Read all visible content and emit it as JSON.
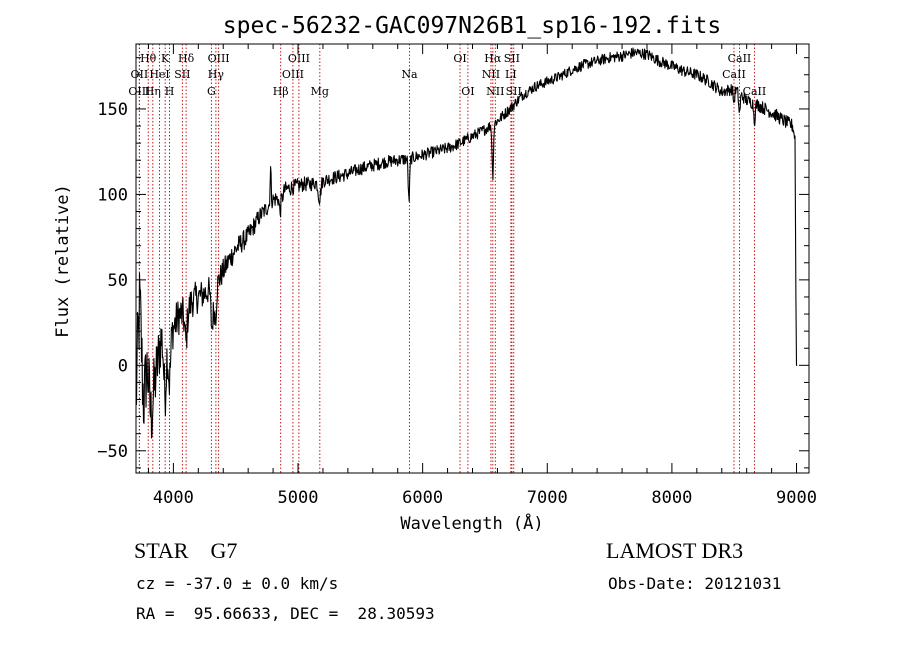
{
  "chart_data": {
    "type": "line",
    "title": "spec-56232-GAC097N26B1_sp16-192.fits",
    "xlabel": "Wavelength (Å)",
    "ylabel": "Flux (relative)",
    "xlim": [
      3700,
      9100
    ],
    "ylim": [
      -63,
      188
    ],
    "xticks": [
      4000,
      5000,
      6000,
      7000,
      8000,
      9000
    ],
    "yticks": [
      -50,
      0,
      50,
      100,
      150
    ],
    "spectrum_anchors": [
      [
        3700,
        -20
      ],
      [
        3730,
        40
      ],
      [
        3760,
        10
      ],
      [
        3800,
        0
      ],
      [
        3850,
        -10
      ],
      [
        3900,
        15
      ],
      [
        3950,
        20
      ],
      [
        4000,
        22
      ],
      [
        4050,
        30
      ],
      [
        4100,
        28
      ],
      [
        4150,
        38
      ],
      [
        4200,
        40
      ],
      [
        4250,
        42
      ],
      [
        4300,
        45
      ],
      [
        4330,
        35
      ],
      [
        4350,
        48
      ],
      [
        4400,
        55
      ],
      [
        4450,
        62
      ],
      [
        4500,
        68
      ],
      [
        4550,
        72
      ],
      [
        4600,
        76
      ],
      [
        4650,
        82
      ],
      [
        4700,
        88
      ],
      [
        4750,
        92
      ],
      [
        4800,
        97
      ],
      [
        4850,
        98
      ],
      [
        4900,
        103
      ],
      [
        4950,
        104
      ],
      [
        5000,
        105
      ],
      [
        5050,
        106
      ],
      [
        5100,
        106
      ],
      [
        5150,
        107
      ],
      [
        5200,
        108
      ],
      [
        5300,
        110
      ],
      [
        5400,
        112
      ],
      [
        5500,
        115
      ],
      [
        5600,
        117
      ],
      [
        5700,
        119
      ],
      [
        5800,
        120
      ],
      [
        5900,
        121
      ],
      [
        6000,
        123
      ],
      [
        6100,
        125
      ],
      [
        6200,
        127
      ],
      [
        6300,
        130
      ],
      [
        6400,
        134
      ],
      [
        6500,
        138
      ],
      [
        6600,
        143
      ],
      [
        6700,
        150
      ],
      [
        6800,
        158
      ],
      [
        6900,
        163
      ],
      [
        7000,
        166
      ],
      [
        7100,
        169
      ],
      [
        7200,
        173
      ],
      [
        7300,
        176
      ],
      [
        7400,
        178
      ],
      [
        7500,
        180
      ],
      [
        7600,
        181
      ],
      [
        7700,
        183
      ],
      [
        7800,
        182
      ],
      [
        7900,
        178
      ],
      [
        8000,
        175
      ],
      [
        8100,
        172
      ],
      [
        8200,
        170
      ],
      [
        8300,
        166
      ],
      [
        8400,
        160
      ],
      [
        8500,
        162
      ],
      [
        8600,
        155
      ],
      [
        8700,
        152
      ],
      [
        8800,
        148
      ],
      [
        8900,
        143
      ],
      [
        8970,
        140
      ],
      [
        8990,
        132
      ],
      [
        9000,
        0
      ]
    ],
    "absorption_dips": [
      [
        3760,
        -30,
        20
      ],
      [
        3820,
        -25,
        20
      ],
      [
        3933,
        -35,
        14
      ],
      [
        3968,
        -30,
        14
      ],
      [
        4101,
        -15,
        12
      ],
      [
        4308,
        -20,
        12
      ],
      [
        4340,
        -12,
        10
      ],
      [
        4861,
        -12,
        12
      ],
      [
        5172,
        -10,
        14
      ],
      [
        5890,
        -25,
        8
      ],
      [
        6563,
        -30,
        8
      ],
      [
        8498,
        -8,
        8
      ],
      [
        8542,
        -12,
        8
      ],
      [
        8662,
        -10,
        8
      ]
    ],
    "emission_spikes": [
      [
        4780,
        20,
        6
      ],
      [
        4865,
        8,
        6
      ]
    ],
    "noise": [
      [
        3700,
        28
      ],
      [
        3800,
        22
      ],
      [
        4000,
        12
      ],
      [
        4300,
        8
      ],
      [
        4700,
        5
      ],
      [
        5200,
        4
      ],
      [
        6000,
        3.5
      ],
      [
        7000,
        3
      ],
      [
        8500,
        3.5
      ],
      [
        9000,
        4
      ]
    ],
    "lines": [
      {
        "name": "Hθ",
        "wave": 3798,
        "row": 1
      },
      {
        "name": "OII",
        "wave": 3727,
        "row": 2
      },
      {
        "name": "OIII",
        "wave": 3727,
        "row": 3
      },
      {
        "name": "K",
        "wave": 3934,
        "row": 1
      },
      {
        "name": "HeI",
        "wave": 3889,
        "row": 2
      },
      {
        "name": "Hη",
        "wave": 3835,
        "row": 3
      },
      {
        "name": "Hδ",
        "wave": 4102,
        "row": 1
      },
      {
        "name": "SII",
        "wave": 4072,
        "row": 2
      },
      {
        "name": "H",
        "wave": 3969,
        "row": 3
      },
      {
        "name": "OIII",
        "wave": 4363,
        "row": 1
      },
      {
        "name": "Hγ",
        "wave": 4341,
        "row": 2
      },
      {
        "name": "G",
        "wave": 4305,
        "row": 3
      },
      {
        "name": "OIII",
        "wave": 5007,
        "row": 1
      },
      {
        "name": "OIII",
        "wave": 4959,
        "row": 2
      },
      {
        "name": "Hβ",
        "wave": 4861,
        "row": 3
      },
      {
        "name": "Mg",
        "wave": 5175,
        "row": 3
      },
      {
        "name": "Na",
        "wave": 5894,
        "row": 2
      },
      {
        "name": "OI",
        "wave": 6300,
        "row": 1
      },
      {
        "name": "OI",
        "wave": 6363,
        "row": 3
      },
      {
        "name": "Hα",
        "wave": 6563,
        "row": 1
      },
      {
        "name": "NII",
        "wave": 6548,
        "row": 2
      },
      {
        "name": "NII",
        "wave": 6583,
        "row": 3
      },
      {
        "name": "SII",
        "wave": 6716,
        "row": 1
      },
      {
        "name": "LI",
        "wave": 6708,
        "row": 2
      },
      {
        "name": "SII",
        "wave": 6731,
        "row": 3
      },
      {
        "name": "CaII",
        "wave": 8542,
        "row": 1
      },
      {
        "name": "CaII",
        "wave": 8498,
        "row": 2
      },
      {
        "name": "CaII",
        "wave": 8662,
        "row": 3
      }
    ]
  },
  "info": {
    "classification": "STAR    G7",
    "redshift": "cz = -37.0 ± 0.0 km/s",
    "coords": "RA =  95.66633, DEC =  28.30593",
    "survey": "LAMOST DR3",
    "obs_date": "Obs-Date: 20121031"
  },
  "colors": {
    "axis": "#000000",
    "spectrum": "#000000",
    "lines": "#c00000"
  }
}
